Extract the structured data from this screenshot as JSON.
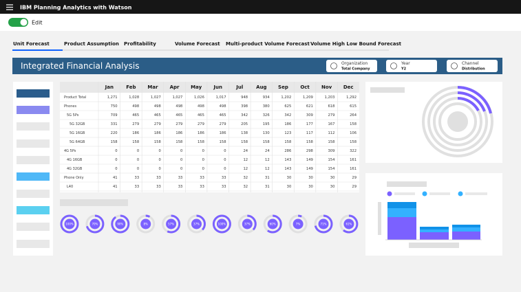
{
  "header": {
    "title": "IBM Planning Analytics with Watson"
  },
  "toggle": {
    "label": "Edit"
  },
  "tabs": [
    "Unit Forecast",
    "Product Assumption",
    "Profitability",
    "Volume Forecast",
    "Multi-product Volume Forecast",
    "Volume High Low Bound Forecast"
  ],
  "banner": {
    "title": "Integrated Financial Analysis",
    "filters": [
      {
        "label": "Organization",
        "value": "Total Company"
      },
      {
        "label": "Year",
        "value": "Y2"
      },
      {
        "label": "Channel",
        "value": "Distribution"
      }
    ]
  },
  "table": {
    "columns": [
      "Jan",
      "Feb",
      "Mar",
      "Apr",
      "May",
      "Jun",
      "Jul",
      "Aug",
      "Sep",
      "Oct",
      "Nov",
      "Dec"
    ],
    "rows": [
      [
        "Product Total",
        "1,271",
        "1,028",
        "1,027",
        "1,027",
        "1,026",
        "1,017",
        "948",
        "934",
        "1,202",
        "1,209",
        "1,203",
        "1,292"
      ],
      [
        "Phones",
        "750",
        "498",
        "498",
        "498",
        "498",
        "498",
        "398",
        "380",
        "625",
        "621",
        "618",
        "615"
      ],
      [
        "5G 5Ps",
        "709",
        "465",
        "465",
        "465",
        "465",
        "465",
        "342",
        "326",
        "342",
        "309",
        "279",
        "264"
      ],
      [
        "5G 32GB",
        "331",
        "279",
        "279",
        "279",
        "279",
        "279",
        "205",
        "195",
        "186",
        "177",
        "167",
        "158"
      ],
      [
        "5G 16GB",
        "220",
        "186",
        "186",
        "186",
        "186",
        "186",
        "138",
        "130",
        "123",
        "117",
        "112",
        "106"
      ],
      [
        "5G 64GB",
        "158",
        "158",
        "158",
        "158",
        "158",
        "158",
        "158",
        "158",
        "158",
        "158",
        "158",
        "158"
      ],
      [
        "4G 5Ps",
        "0",
        "0",
        "0",
        "0",
        "0",
        "0",
        "24",
        "24",
        "286",
        "298",
        "309",
        "322"
      ],
      [
        "4G 16GB",
        "0",
        "0",
        "0",
        "0",
        "0",
        "0",
        "12",
        "12",
        "143",
        "149",
        "154",
        "161"
      ],
      [
        "4G 32GB",
        "0",
        "0",
        "0",
        "0",
        "0",
        "0",
        "12",
        "12",
        "143",
        "149",
        "154",
        "161"
      ],
      [
        "Phone Only",
        "41",
        "33",
        "33",
        "33",
        "33",
        "33",
        "32",
        "31",
        "30",
        "30",
        "30",
        "29"
      ],
      [
        "L40",
        "41",
        "33",
        "33",
        "33",
        "33",
        "33",
        "32",
        "31",
        "30",
        "30",
        "30",
        "29"
      ]
    ]
  },
  "gauges": [
    {
      "value": 100,
      "label": "100%"
    },
    {
      "value": 70,
      "label": "70%"
    },
    {
      "value": 90,
      "label": "90%"
    },
    {
      "value": 8,
      "label": "8%"
    },
    {
      "value": 57,
      "label": "57%"
    },
    {
      "value": 37,
      "label": "37%"
    },
    {
      "value": 100,
      "label": "100%"
    },
    {
      "value": 37,
      "label": "37%"
    },
    {
      "value": 60,
      "label": "60%"
    },
    {
      "value": 7,
      "label": "7%"
    },
    {
      "value": 71,
      "label": "71%"
    },
    {
      "value": 61,
      "label": "61%"
    }
  ]
}
